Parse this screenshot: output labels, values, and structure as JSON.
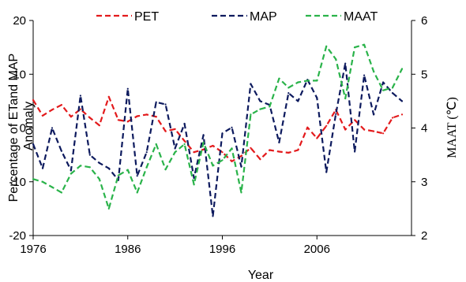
{
  "chart_data": {
    "type": "line",
    "xlabel": "Year",
    "ylabel": [
      "Percentage of ETand MAP",
      "Anomaly"
    ],
    "y2label": "MAAT (℃)",
    "xlim": [
      1976,
      2016
    ],
    "ylim": [
      -20,
      20
    ],
    "y2lim": [
      2,
      6
    ],
    "xticks": [
      "1976",
      "1986",
      "1996",
      "2006"
    ],
    "yticks": [
      "-20",
      "-10",
      "0",
      "10",
      "20"
    ],
    "y2ticks": [
      "2",
      "3",
      "4",
      "5",
      "6"
    ],
    "legend_position": "top",
    "series": [
      {
        "name": "PET",
        "axis": "left",
        "color": "#e31a1c",
        "x": [
          1976,
          1977,
          1978,
          1979,
          1980,
          1981,
          1982,
          1983,
          1984,
          1985,
          1986,
          1987,
          1988,
          1989,
          1990,
          1991,
          1992,
          1993,
          1994,
          1995,
          1996,
          1997,
          1998,
          1999,
          2000,
          2001,
          2002,
          2003,
          2004,
          2005,
          2006,
          2007,
          2008,
          2009,
          2010,
          2011,
          2012,
          2013,
          2014,
          2015
        ],
        "values": [
          5.2,
          2.3,
          3.4,
          4.3,
          2.1,
          3.5,
          1.9,
          0.5,
          5.8,
          1.5,
          1.2,
          2.2,
          2.5,
          2.1,
          -0.6,
          -0.2,
          -2.4,
          -4.5,
          -4.0,
          -3.3,
          -4.5,
          -6.2,
          -5.2,
          -3.7,
          -5.8,
          -4.1,
          -4.4,
          -4.6,
          -4.1,
          0.1,
          -1.9,
          0.4,
          3.4,
          -0.3,
          1.5,
          -0.3,
          -0.6,
          -1.0,
          1.9,
          2.5
        ]
      },
      {
        "name": "MAP",
        "axis": "left",
        "color": "#0d1a5e",
        "x": [
          1976,
          1977,
          1978,
          1979,
          1980,
          1981,
          1982,
          1983,
          1984,
          1985,
          1986,
          1987,
          1988,
          1989,
          1990,
          1991,
          1992,
          1993,
          1994,
          1995,
          1996,
          1997,
          1998,
          1999,
          2000,
          2001,
          2002,
          2003,
          2004,
          2005,
          2006,
          2007,
          2008,
          2009,
          2010,
          2011,
          2012,
          2013,
          2014,
          2015
        ],
        "values": [
          -3.0,
          -7.5,
          0.0,
          -4.3,
          -7.9,
          6.0,
          -5.0,
          -6.5,
          -7.5,
          -9.7,
          7.3,
          -8.9,
          -4.5,
          4.8,
          4.4,
          -3.8,
          0.8,
          -9.3,
          -1.3,
          -16.4,
          -1.0,
          0.1,
          -7.2,
          8.2,
          5.0,
          4.3,
          -2.7,
          6.5,
          5.0,
          9.0,
          5.6,
          -8.2,
          2.6,
          12.0,
          -4.4,
          9.8,
          2.5,
          8.5,
          6.5,
          5.0
        ]
      },
      {
        "name": "MAAT",
        "axis": "right",
        "color": "#2ab34a",
        "x": [
          1976,
          1977,
          1978,
          1979,
          1980,
          1981,
          1982,
          1983,
          1984,
          1985,
          1986,
          1987,
          1988,
          1989,
          1990,
          1991,
          1992,
          1993,
          1994,
          1995,
          1996,
          1997,
          1998,
          1999,
          2000,
          2001,
          2002,
          2003,
          2004,
          2005,
          2006,
          2007,
          2008,
          2009,
          2010,
          2011,
          2012,
          2013,
          2014,
          2015
        ],
        "values": [
          3.05,
          3.0,
          2.9,
          2.8,
          3.15,
          3.3,
          3.27,
          3.05,
          2.5,
          3.12,
          3.22,
          2.8,
          3.27,
          3.7,
          3.23,
          3.55,
          3.7,
          2.95,
          3.73,
          3.3,
          3.4,
          3.62,
          2.8,
          4.25,
          4.35,
          4.4,
          4.92,
          4.75,
          4.85,
          4.88,
          4.88,
          5.52,
          5.28,
          4.55,
          5.5,
          5.55,
          5.05,
          4.7,
          4.75,
          5.1
        ]
      }
    ]
  }
}
